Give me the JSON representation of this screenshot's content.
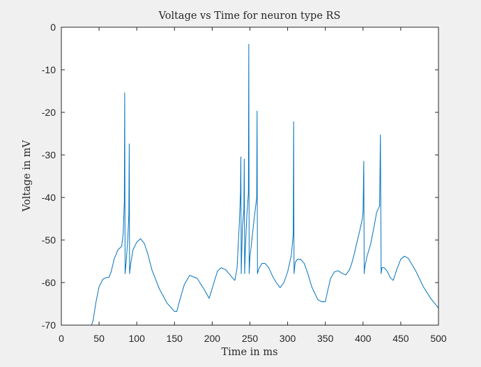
{
  "chart_data": {
    "type": "line",
    "title": "Voltage vs Time for neuron type RS",
    "xlabel": "Time in ms",
    "ylabel": "Voltage in mV",
    "xlim": [
      0,
      500
    ],
    "ylim": [
      -70,
      0
    ],
    "xticks": [
      0,
      50,
      100,
      150,
      200,
      250,
      300,
      350,
      400,
      450,
      500
    ],
    "yticks": [
      0,
      -10,
      -20,
      -30,
      -40,
      -50,
      -60,
      -70
    ],
    "grid": false,
    "legend": "none",
    "colors": {
      "line": "#0072bd",
      "axes_bg": "#ffffff",
      "figure_bg": "#f0f0f0",
      "axis": "#262626"
    },
    "series": [
      {
        "x": [
          0,
          40,
          42,
          46,
          50,
          55,
          60,
          63,
          66,
          70,
          75,
          80,
          82,
          83.5,
          84,
          84.5,
          86,
          88,
          89.5,
          90,
          90.5,
          92,
          95,
          100,
          105,
          110,
          115,
          120,
          130,
          140,
          150,
          153,
          158,
          163,
          170,
          180,
          190,
          196,
          202,
          207,
          212,
          218,
          225,
          230,
          233,
          236,
          237.5,
          238,
          238.5,
          240,
          242,
          242.5,
          243,
          244,
          246,
          248,
          248.5,
          249,
          250,
          252,
          255,
          257,
          259,
          259.5,
          260,
          262,
          266,
          270,
          275,
          280,
          285,
          290,
          295,
          300,
          305,
          307.5,
          308,
          308.5,
          310,
          313,
          317,
          322,
          327,
          332,
          340,
          345,
          350,
          353,
          357,
          362,
          367,
          372,
          377,
          382,
          385,
          388,
          392,
          396,
          399,
          400,
          401,
          401.5,
          402,
          405,
          410,
          415,
          418,
          422,
          423,
          424,
          425,
          428,
          432,
          436,
          440,
          445,
          450,
          455,
          460,
          465,
          470,
          480,
          490,
          500
        ],
        "y": [
          -70,
          -70,
          -69,
          -64.5,
          -61,
          -59.2,
          -58.8,
          -58.8,
          -57.5,
          -54.5,
          -52.3,
          -51.5,
          -48.5,
          -41,
          -15.4,
          -57.9,
          -55,
          -50,
          -44,
          -27.4,
          -57.9,
          -55.5,
          -52.3,
          -50.5,
          -49.7,
          -50.8,
          -53.5,
          -57,
          -61.5,
          -64.8,
          -66.8,
          -66.8,
          -63.5,
          -60.5,
          -58.3,
          -59,
          -61.8,
          -63.7,
          -60.2,
          -57.3,
          -56.5,
          -57,
          -58.5,
          -59.5,
          -56.5,
          -46,
          -39,
          -30.5,
          -57.9,
          -47,
          -43,
          -31,
          -57.9,
          -52,
          -44,
          -39,
          -4,
          -57.9,
          -54,
          -51,
          -46,
          -43,
          -40,
          -19.7,
          -57.9,
          -56.7,
          -55.5,
          -55.5,
          -56.5,
          -58.5,
          -60,
          -61.2,
          -60,
          -57.5,
          -53.5,
          -48.5,
          -22.2,
          -57.9,
          -55.3,
          -54.5,
          -54.5,
          -55.5,
          -58,
          -61,
          -64,
          -64.5,
          -64.5,
          -62,
          -59,
          -57.5,
          -57.2,
          -57.8,
          -58.2,
          -57,
          -55.5,
          -53.5,
          -50.5,
          -47.5,
          -45,
          -43.5,
          -31.5,
          -57.9,
          -56.7,
          -54,
          -51,
          -46.5,
          -43.5,
          -42,
          -25.3,
          -57.9,
          -56.5,
          -56.5,
          -57.3,
          -58.8,
          -59.5,
          -56.8,
          -54.5,
          -53.8,
          -54.3,
          -55.8,
          -57.3,
          -61,
          -63.8,
          -66
        ]
      }
    ]
  }
}
